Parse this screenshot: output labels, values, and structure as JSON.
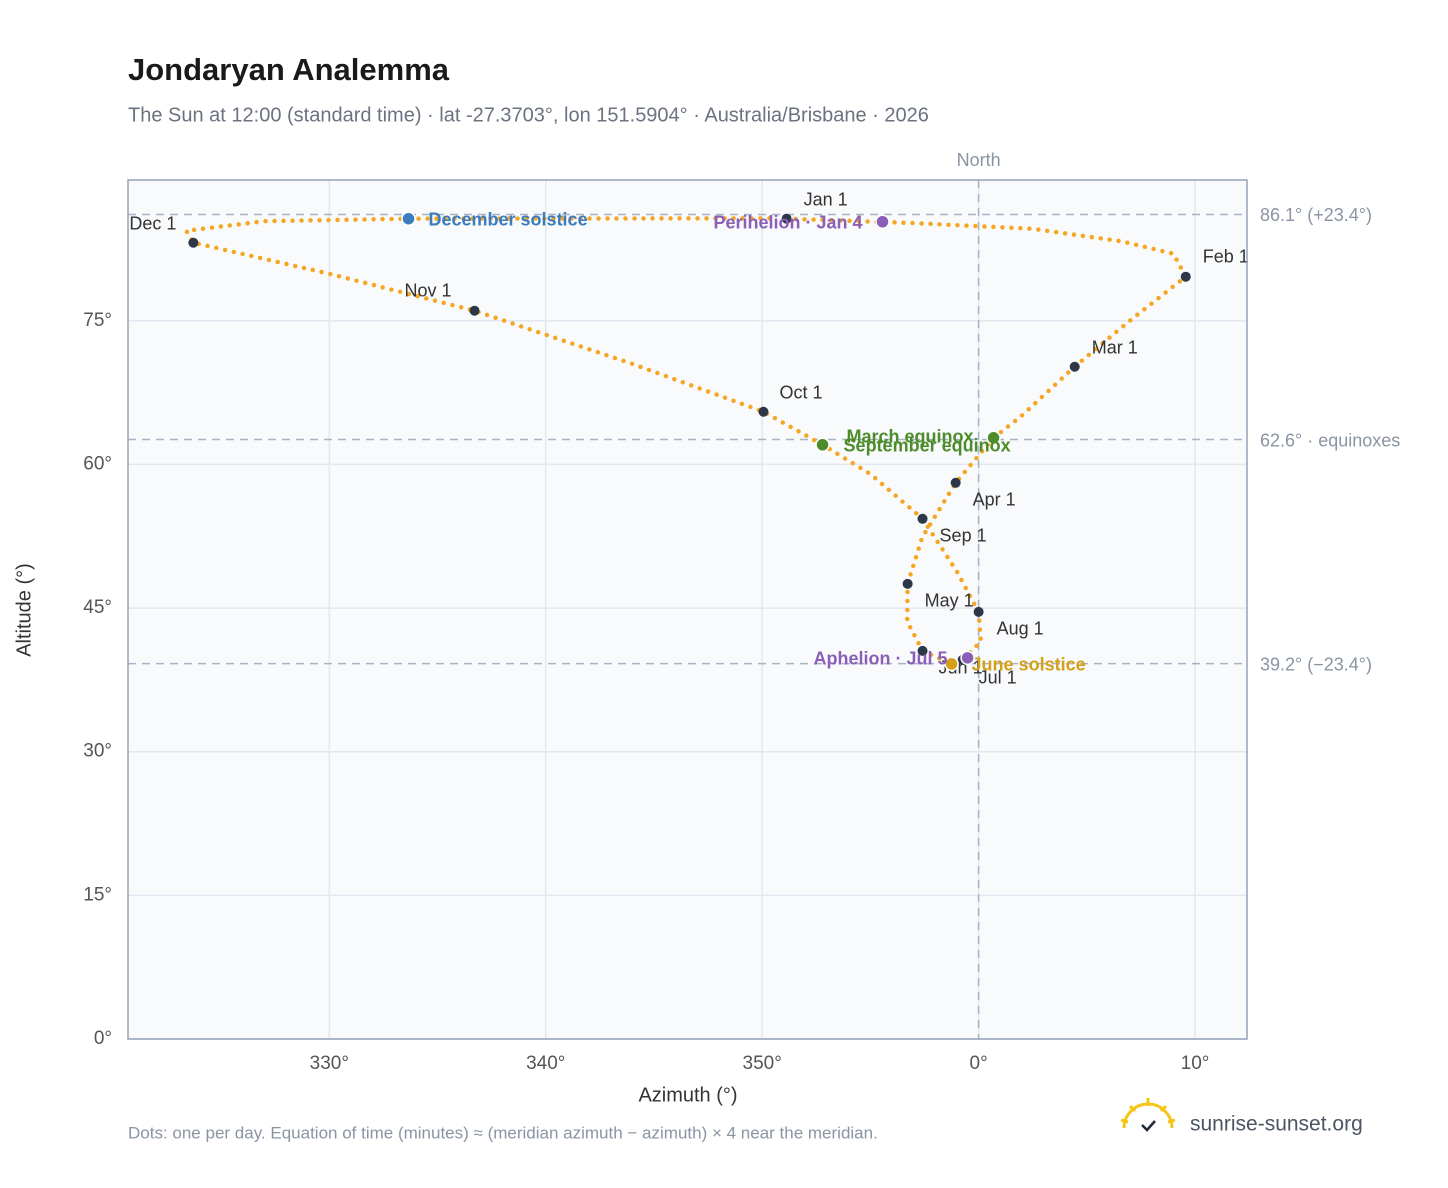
{
  "chart_data": {
    "type": "scatter",
    "title": "Jondaryan Analemma",
    "subtitle": "The Sun at 12:00 (standard time) · lat -27.3703°, lon 151.5904° · Australia/Brisbane · 2026",
    "x_label": "Azimuth (°)",
    "y_label": "Altitude (°)",
    "xlim": [
      -39.3,
      12.4
    ],
    "ylim": [
      0,
      89.7
    ],
    "xticks": [
      {
        "value": -30,
        "label": "330°"
      },
      {
        "value": -20,
        "label": "340°"
      },
      {
        "value": -10,
        "label": "350°"
      },
      {
        "value": 0,
        "label": "0°"
      },
      {
        "value": 10,
        "label": "10°"
      }
    ],
    "yticks": [
      {
        "value": 0,
        "label": "0°"
      },
      {
        "value": 15,
        "label": "15°"
      },
      {
        "value": 30,
        "label": "30°"
      },
      {
        "value": 45,
        "label": "45°"
      },
      {
        "value": 60,
        "label": "60°"
      },
      {
        "value": 75,
        "label": "75°"
      }
    ],
    "grid": true,
    "series": [
      {
        "color": "#f5a623",
        "x": [
          -8.87,
          -3.0,
          2.5,
          6.6,
          9.0,
          9.57,
          6.93,
          4.44,
          1.9,
          0.69,
          -1.06,
          -2.6,
          -3.28,
          -3.3,
          -2.59,
          -1.25,
          -0.74,
          0.1,
          0,
          -1.0,
          -2.59,
          -5.0,
          -7.21,
          -9.94,
          -16.0,
          -23.29,
          -30.0,
          -36.28,
          -36.6,
          -33.0,
          -26.34,
          -9.5
        ],
        "y": [
          85.66,
          85.2,
          84.6,
          83.3,
          82.0,
          79.6,
          74.9,
          70.2,
          64.9,
          62.78,
          58.08,
          52.4,
          47.53,
          43.6,
          40.53,
          39.17,
          39.59,
          41.5,
          44.6,
          48.8,
          54.32,
          59.0,
          62.05,
          65.5,
          70.5,
          76.05,
          79.9,
          83.15,
          84.4,
          85.4,
          85.66,
          85.7
        ]
      }
    ],
    "marker_color": "#2d3748",
    "month_markers": [
      {
        "label": "Jan 1",
        "x": -8.87,
        "y": 85.66
      },
      {
        "label": "Feb 1",
        "x": 9.57,
        "y": 79.6
      },
      {
        "label": "Mar 1",
        "x": 4.44,
        "y": 70.2
      },
      {
        "label": "Apr 1",
        "x": -1.06,
        "y": 58.08
      },
      {
        "label": "May 1",
        "x": -3.28,
        "y": 47.53
      },
      {
        "label": "Jun 1",
        "x": -2.59,
        "y": 40.53
      },
      {
        "label": "Jul 1",
        "x": -0.74,
        "y": 39.59
      },
      {
        "label": "Aug 1",
        "x": 0,
        "y": 44.6
      },
      {
        "label": "Sep 1",
        "x": -2.59,
        "y": 54.32
      },
      {
        "label": "Oct 1",
        "x": -9.94,
        "y": 65.5
      },
      {
        "label": "Nov 1",
        "x": -23.29,
        "y": 76.05
      },
      {
        "label": "Dec 1",
        "x": -36.28,
        "y": 83.15
      }
    ],
    "events": [
      {
        "label": "December solstice",
        "color": "#3b7bbf",
        "x": -26.34,
        "y": 85.66
      },
      {
        "label": "Perihelion · Jan 4",
        "color": "#8b5fb8",
        "x": -4.44,
        "y": 85.34
      },
      {
        "label": "March equinox",
        "color": "#4d8c2a",
        "x": 0.69,
        "y": 62.78
      },
      {
        "label": "September equinox",
        "color": "#4d8c2a",
        "x": -7.21,
        "y": 62.05
      },
      {
        "label": "June solstice",
        "color": "#d4a017",
        "x": -1.25,
        "y": 39.17
      },
      {
        "label": "Aphelion · Jul 5",
        "color": "#8b5fb8",
        "x": -0.51,
        "y": 39.8
      }
    ],
    "reference_lines": [
      {
        "value": 86.1,
        "label": "86.1° (+23.4°)"
      },
      {
        "value": 62.6,
        "label": "62.6° · equinoxes"
      },
      {
        "value": 39.2,
        "label": "39.2° (−23.4°)"
      }
    ],
    "meridian": {
      "value": 0,
      "label": "North"
    },
    "note": "Dots: one per day. Equation of time (minutes) ≈ (meridian azimuth − azimuth) × 4 near the meridian.",
    "brand": "sunrise-sunset.org"
  }
}
